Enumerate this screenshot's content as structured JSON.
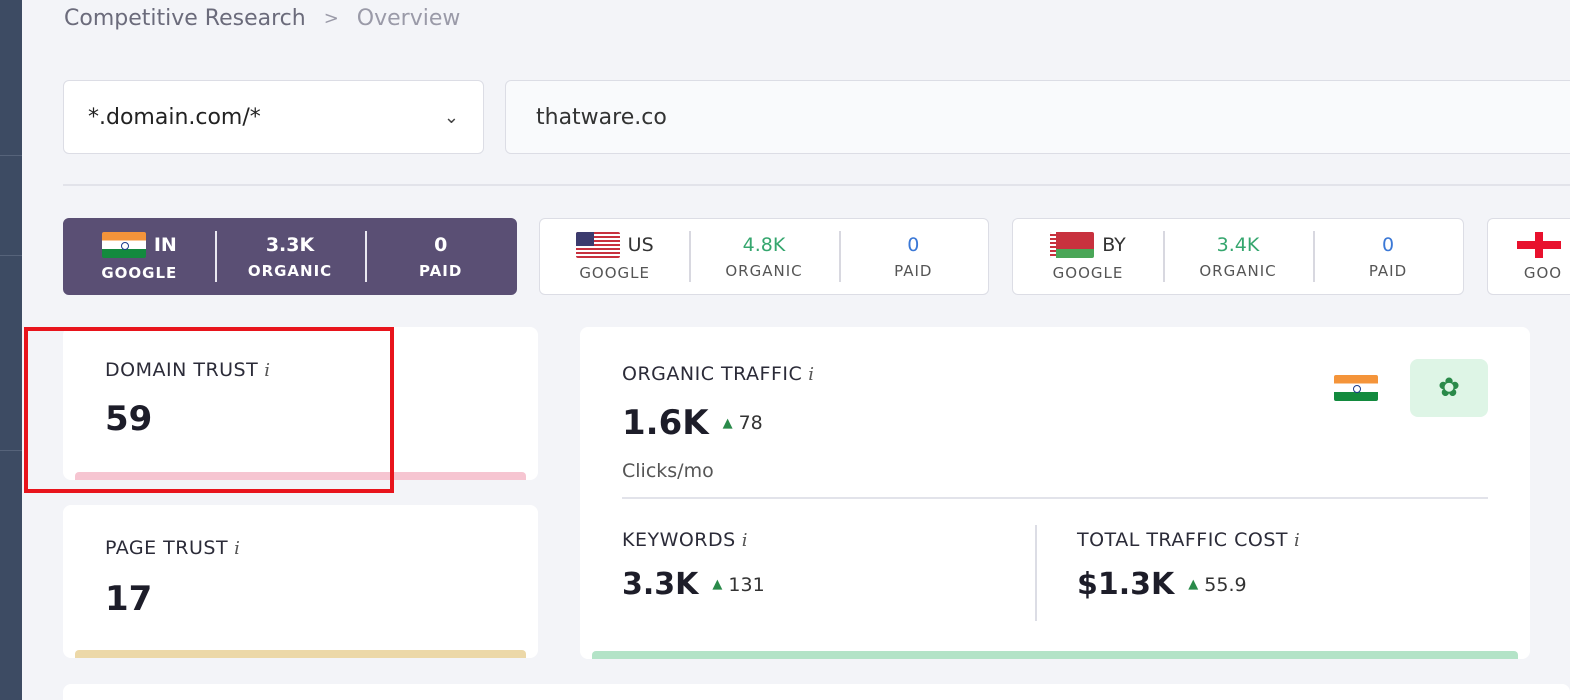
{
  "breadcrumb": {
    "parent": "Competitive Research",
    "separator": ">",
    "current": "Overview"
  },
  "filter": {
    "scope_value": "*.domain.com/*",
    "domain_value": "thatware.co"
  },
  "database_tabs": [
    {
      "country": "IN",
      "engine": "GOOGLE",
      "organic": "3.3K",
      "organic_label": "ORGANIC",
      "paid": "0",
      "paid_label": "PAID",
      "flag_icon": "india-flag-icon",
      "active": true
    },
    {
      "country": "US",
      "engine": "GOOGLE",
      "organic": "4.8K",
      "organic_label": "ORGANIC",
      "paid": "0",
      "paid_label": "PAID",
      "flag_icon": "usa-flag-icon",
      "active": false
    },
    {
      "country": "BY",
      "engine": "GOOGLE",
      "organic": "3.4K",
      "organic_label": "ORGANIC",
      "paid": "0",
      "paid_label": "PAID",
      "flag_icon": "belarus-flag-icon",
      "active": false
    },
    {
      "country": "",
      "engine": "GOO",
      "flag_icon": "georgia-flag-icon",
      "active": false
    }
  ],
  "domain_trust": {
    "label": "DOMAIN TRUST",
    "info": "i",
    "value": "59",
    "bar_color": "#f6c5d1"
  },
  "page_trust": {
    "label": "PAGE TRUST",
    "info": "i",
    "value": "17",
    "bar_color": "#ecd8a8"
  },
  "organic_traffic": {
    "label": "ORGANIC TRAFFIC",
    "info": "i",
    "value": "1.6K",
    "delta": "78",
    "unit": "Clicks/mo",
    "flag_icon": "india-flag-icon",
    "action_icon": "leaf-icon",
    "bar_color": "#b3e3c7"
  },
  "keywords": {
    "label": "KEYWORDS",
    "info": "i",
    "value": "3.3K",
    "delta": "131"
  },
  "traffic_cost": {
    "label": "TOTAL TRAFFIC COST",
    "info": "i",
    "value": "$1.3K",
    "delta": "55.9"
  },
  "colors": {
    "accent": "#5a4f74",
    "highlight": "#e8141c",
    "positive": "#2a8a4a"
  }
}
